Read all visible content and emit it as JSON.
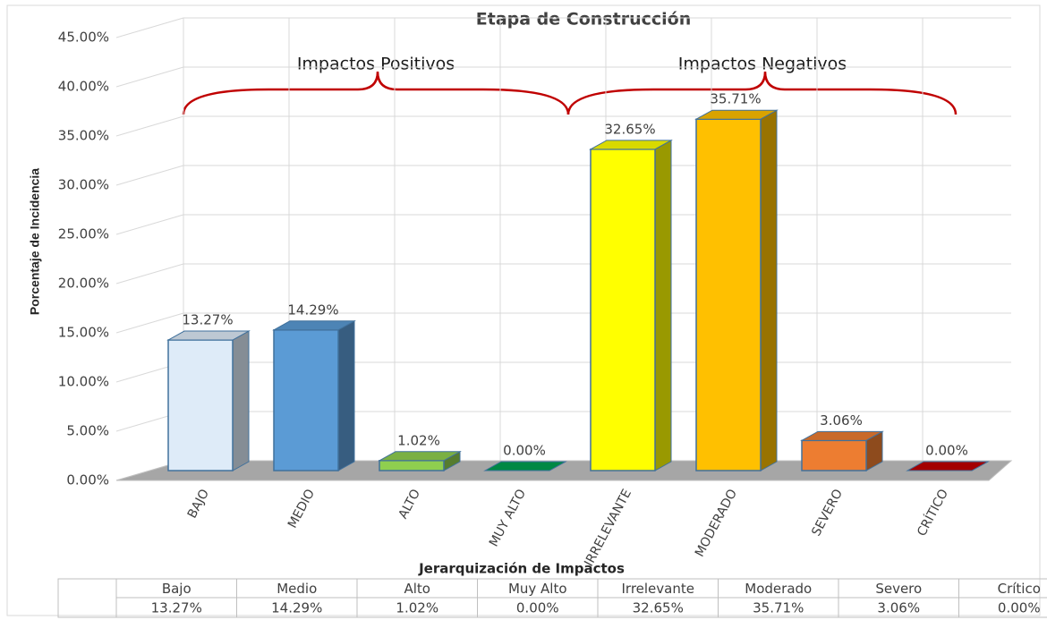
{
  "chart_data": {
    "type": "bar3d",
    "title": "Etapa de Construcción",
    "y_axis_label": "Porcentaje de Incidencia",
    "x_axis_label": "Jerarquización de Impactos",
    "annotations": [
      "Impactos Positivos",
      "Impactos Negativos"
    ],
    "categories": [
      "BAJO",
      "MEDIO",
      "ALTO",
      "MUY ALTO",
      "IRRELEVANTE",
      "MODERADO",
      "SEVERO",
      "CRÍTICO"
    ],
    "values": [
      13.27,
      14.29,
      1.02,
      0,
      32.65,
      35.71,
      3.06,
      0
    ],
    "value_labels": [
      "13.27%",
      "14.29%",
      "1.02%",
      "0.00%",
      "32.65%",
      "35.71%",
      "3.06%",
      "0.00%"
    ],
    "colors": [
      "#deebf8",
      "#5b9bd5",
      "#8fcf4f",
      "#00a050",
      "#ffff00",
      "#ffc000",
      "#ed7d31",
      "#c00000"
    ],
    "ylim": [
      0,
      45
    ],
    "yticks": [
      {
        "value": 0,
        "label": "0.00%"
      },
      {
        "value": 5,
        "label": "5.00%"
      },
      {
        "value": 10,
        "label": "10.00%"
      },
      {
        "value": 15,
        "label": "15.00%"
      },
      {
        "value": 20,
        "label": "20.00%"
      },
      {
        "value": 25,
        "label": "25.00%"
      },
      {
        "value": 30,
        "label": "30.00%"
      },
      {
        "value": 35,
        "label": "35.00%"
      },
      {
        "value": 40,
        "label": "40.00%"
      },
      {
        "value": 45,
        "label": "45.00%"
      }
    ],
    "grid": true,
    "table": {
      "header": [
        "Bajo",
        "Medio",
        "Alto",
        "Muy Alto",
        "Irrelevante",
        "Moderado",
        "Severo",
        "Crítico"
      ]
    }
  }
}
